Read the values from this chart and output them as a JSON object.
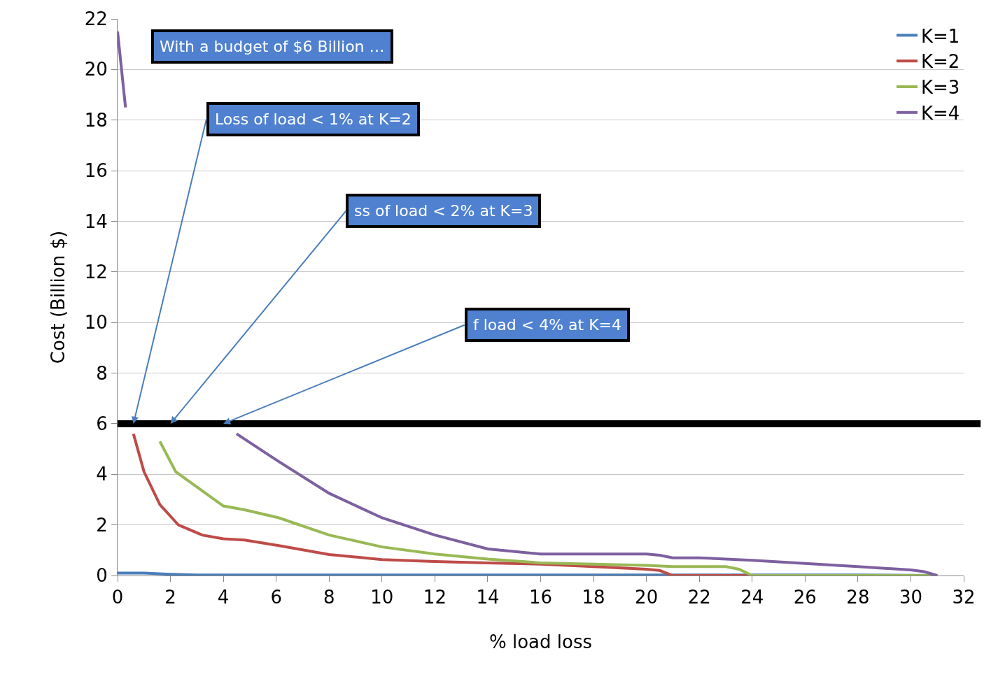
{
  "chart_data": {
    "type": "line",
    "xlabel": "% load loss",
    "ylabel": "Cost (Billion $)",
    "xlim": [
      0,
      32
    ],
    "xticks": [
      0,
      2,
      4,
      6,
      8,
      10,
      12,
      14,
      16,
      18,
      20,
      22,
      24,
      26,
      28,
      30,
      32
    ],
    "ylim": [
      0,
      22
    ],
    "yticks": [
      0,
      2,
      4,
      6,
      8,
      10,
      12,
      14,
      16,
      18,
      20,
      22
    ],
    "grid": "y",
    "legend": "top right",
    "marker": "none",
    "line_style": "solid",
    "ref_lines": [
      {
        "axis": "y",
        "value": 6,
        "color": "#000000"
      }
    ],
    "annotations": [
      "With a budget of $6 Billion …",
      {
        "text": "Loss of load < 1% at K=2",
        "x": 0.6,
        "y": 6
      },
      {
        "text": "ss of load < 2% at K=3",
        "x": 2,
        "y": 6
      },
      {
        "text": "f load < 4% at K=4",
        "x": 4,
        "y": 6
      }
    ],
    "series": [
      {
        "name": "K=1",
        "color": "#4a7ebb",
        "x": [
          0,
          1,
          2,
          3,
          4,
          8,
          12,
          16,
          20,
          24,
          28,
          31
        ],
        "values": [
          0.1,
          0.1,
          0.05,
          0.02,
          0.02,
          0.02,
          0.02,
          0.02,
          0.02,
          0.02,
          0.02,
          0
        ]
      },
      {
        "name": "K=2",
        "color": "#be4b48",
        "x": [
          0.6,
          1,
          1.6,
          2.3,
          3.2,
          4,
          4.8,
          6.1,
          8,
          10,
          12,
          14,
          16,
          18,
          20,
          20.5,
          21,
          24,
          28,
          31
        ],
        "values": [
          5.6,
          4.1,
          2.8,
          2.0,
          1.6,
          1.45,
          1.4,
          1.18,
          0.83,
          0.63,
          0.55,
          0.5,
          0.45,
          0.35,
          0.25,
          0.2,
          0,
          0,
          0,
          0
        ]
      },
      {
        "name": "K=3",
        "color": "#98b954",
        "x": [
          1.6,
          2.2,
          3,
          4,
          4.8,
          6.1,
          8,
          10,
          12,
          14,
          16,
          18,
          20,
          21,
          23,
          23.5,
          24,
          28,
          31
        ],
        "values": [
          5.3,
          4.1,
          3.5,
          2.75,
          2.6,
          2.28,
          1.6,
          1.13,
          0.85,
          0.65,
          0.5,
          0.45,
          0.4,
          0.35,
          0.35,
          0.25,
          0,
          0,
          0
        ]
      },
      {
        "name": "K=4",
        "color": "#7d60a0",
        "x": [
          0,
          0.3,
          0.5,
          3.8,
          4.5,
          6.1,
          8,
          10,
          12,
          14,
          16,
          18,
          20,
          20.5,
          21,
          22,
          24,
          26,
          28,
          30,
          30.5,
          31
        ],
        "values": [
          21.5,
          18.5,
          null,
          null,
          5.6,
          4.5,
          3.25,
          2.28,
          1.6,
          1.05,
          0.85,
          0.85,
          0.85,
          0.8,
          0.7,
          0.7,
          0.6,
          0.48,
          0.35,
          0.22,
          0.15,
          0
        ]
      }
    ]
  }
}
